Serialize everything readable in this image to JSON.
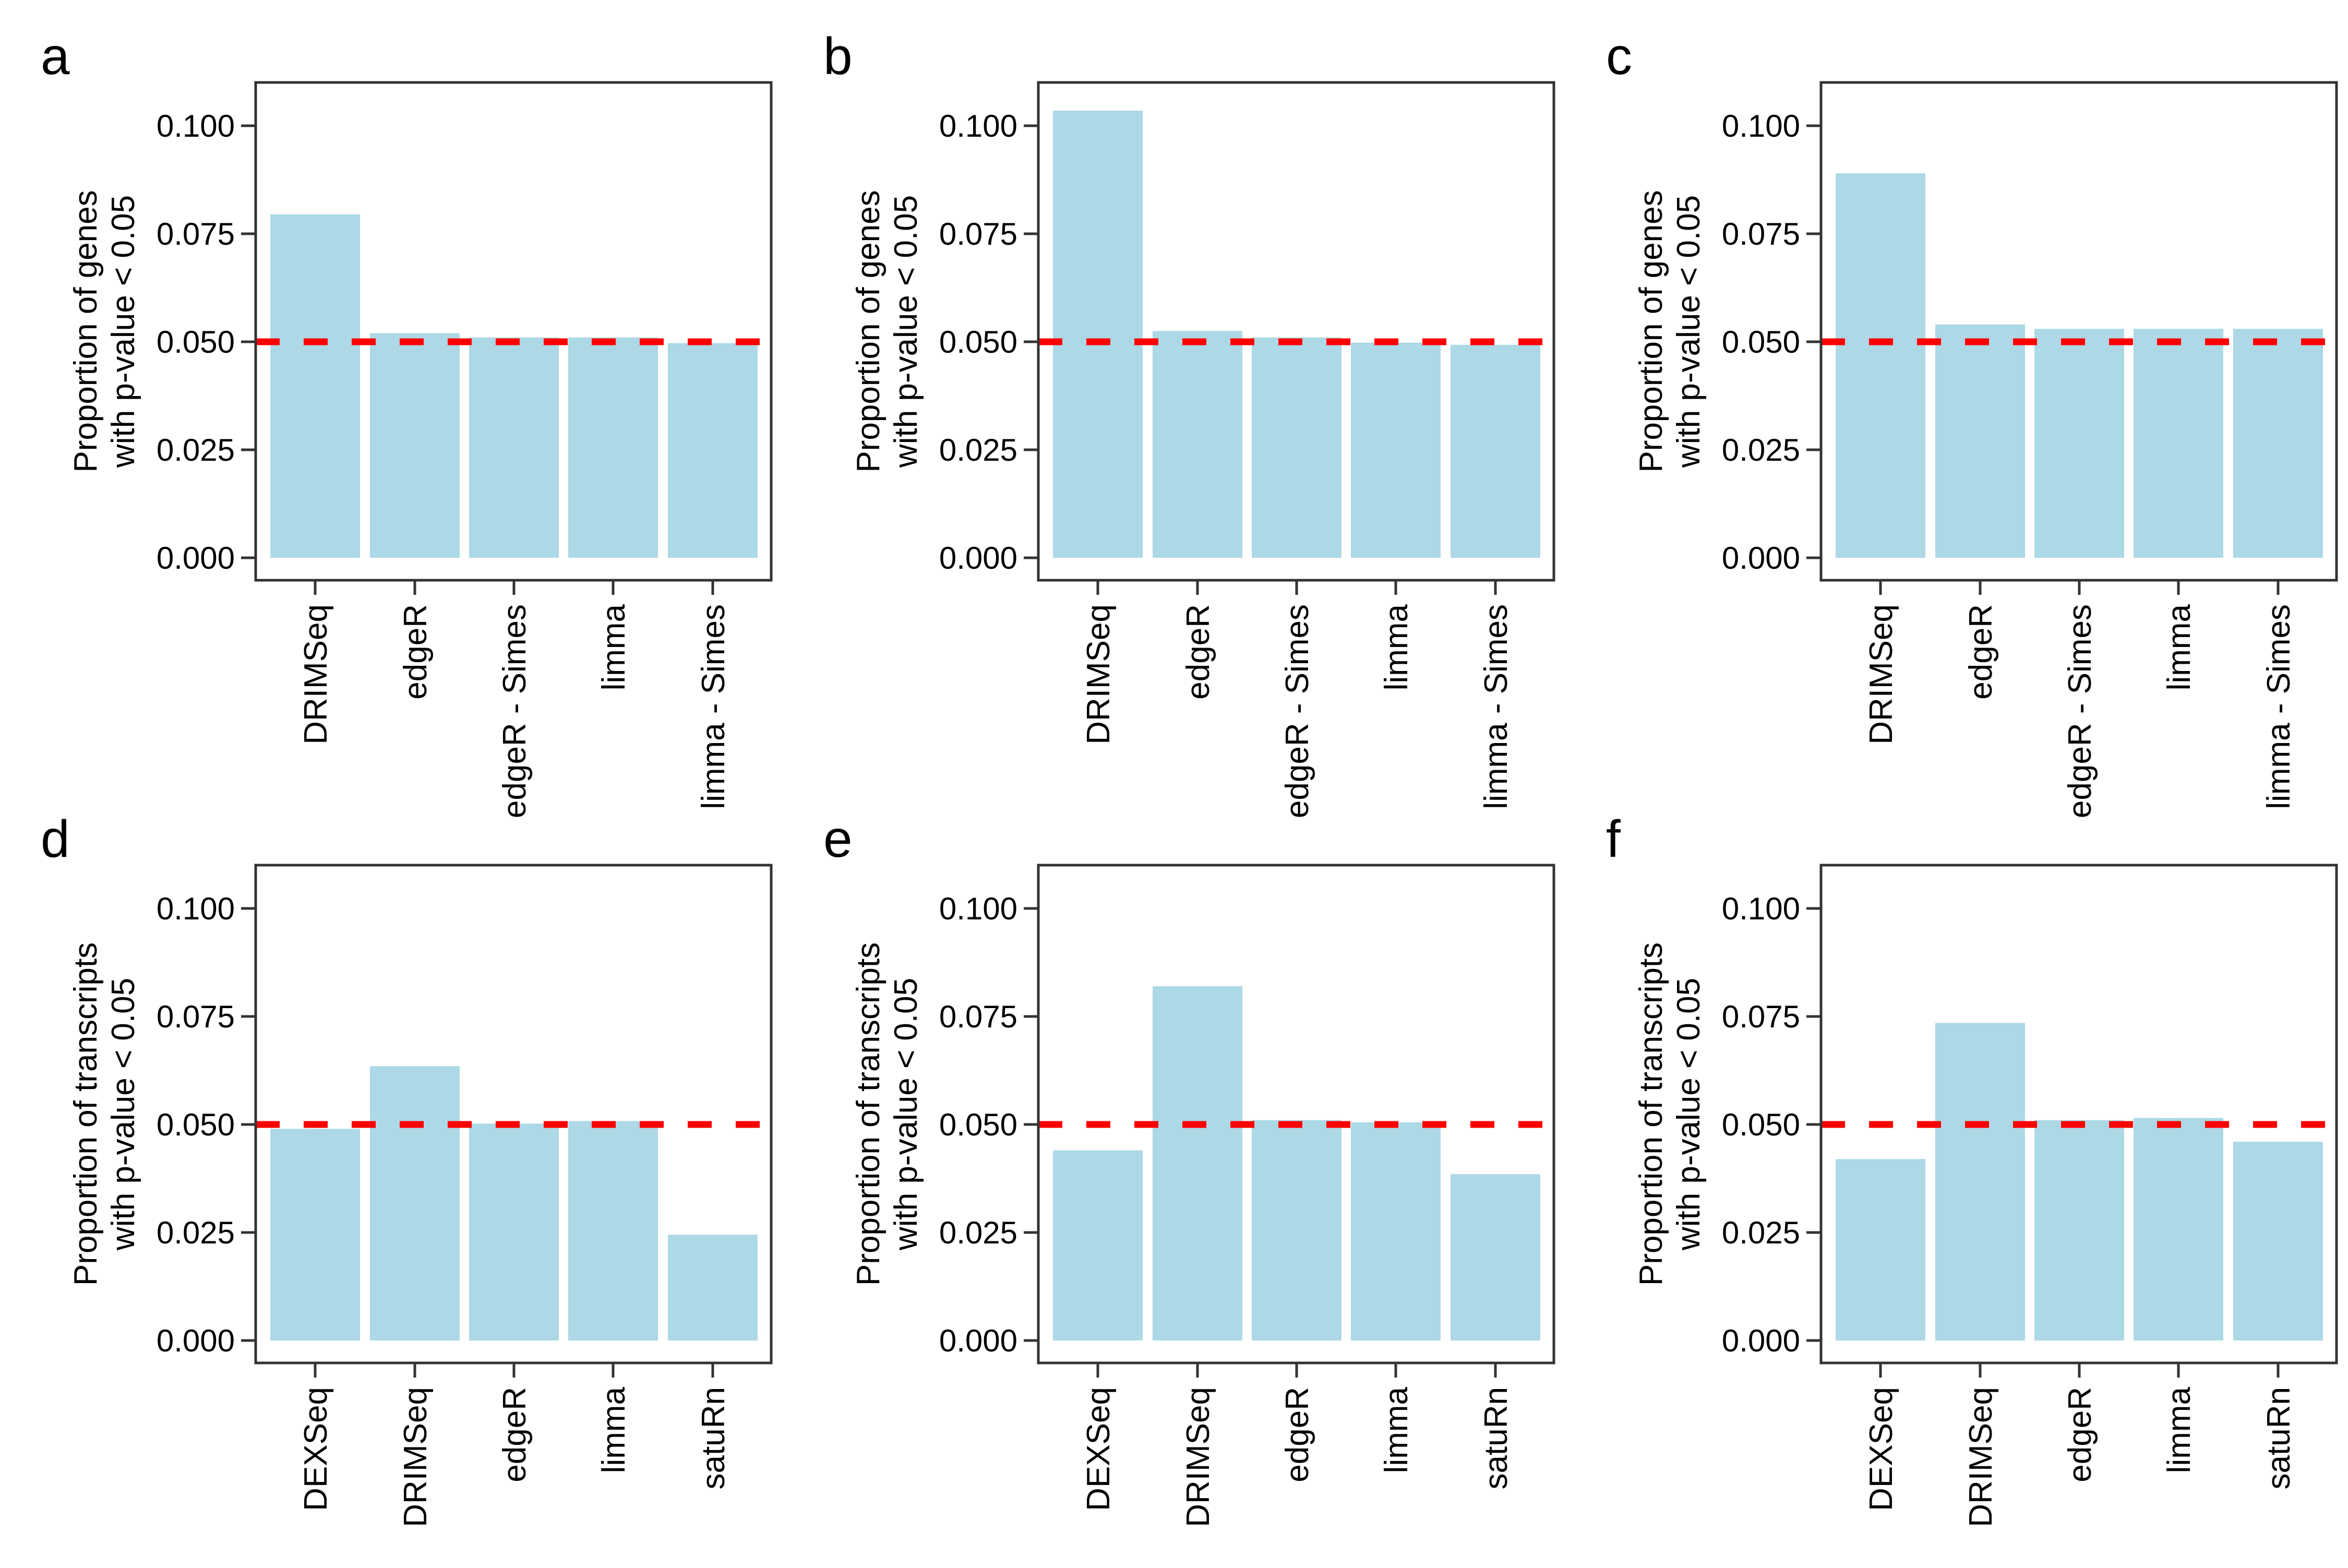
{
  "figure": {
    "background": "#FFFFFF",
    "bar_color": "#ADD8E6",
    "ref_line_color": "#FF0000",
    "axis_color": "#333333",
    "text_color": "#000000",
    "y_tick_values": [
      0.0,
      0.025,
      0.05,
      0.075,
      0.1
    ],
    "y_tick_labels": [
      "0.000",
      "0.025",
      "0.050",
      "0.075",
      "0.100"
    ]
  },
  "chart_data": [
    {
      "panel_label": "a",
      "type": "bar",
      "ylabel_line1": "Proportion of genes",
      "ylabel_line2": "with p-value < 0.05",
      "categories": [
        "DRIMSeq",
        "edgeR",
        "edgeR - Simes",
        "limma",
        "limma - Simes"
      ],
      "values": [
        0.0795,
        0.052,
        0.051,
        0.051,
        0.0497
      ],
      "ref_line": 0.05,
      "ylim": [
        0,
        0.11
      ],
      "grid": "off",
      "legend": "none"
    },
    {
      "panel_label": "b",
      "type": "bar",
      "ylabel_line1": "Proportion of genes",
      "ylabel_line2": "with p-value < 0.05",
      "categories": [
        "DRIMSeq",
        "edgeR",
        "edgeR - Simes",
        "limma",
        "limma - Simes"
      ],
      "values": [
        0.1035,
        0.0525,
        0.051,
        0.0498,
        0.0493
      ],
      "ref_line": 0.05,
      "ylim": [
        0,
        0.11
      ],
      "grid": "off",
      "legend": "none"
    },
    {
      "panel_label": "c",
      "type": "bar",
      "ylabel_line1": "Proportion of genes",
      "ylabel_line2": "with p-value < 0.05",
      "categories": [
        "DRIMSeq",
        "edgeR",
        "edgeR - Simes",
        "limma",
        "limma - Simes"
      ],
      "values": [
        0.089,
        0.054,
        0.053,
        0.053,
        0.053
      ],
      "ref_line": 0.05,
      "ylim": [
        0,
        0.11
      ],
      "grid": "off",
      "legend": "none"
    },
    {
      "panel_label": "d",
      "type": "bar",
      "ylabel_line1": "Proportion of transcripts",
      "ylabel_line2": "with p-value < 0.05",
      "categories": [
        "DEXSeq",
        "DRIMSeq",
        "edgeR",
        "limma",
        "satuRn"
      ],
      "values": [
        0.049,
        0.0635,
        0.0502,
        0.0508,
        0.0245
      ],
      "ref_line": 0.05,
      "ylim": [
        0,
        0.11
      ],
      "grid": "off",
      "legend": "none"
    },
    {
      "panel_label": "e",
      "type": "bar",
      "ylabel_line1": "Proportion of transcripts",
      "ylabel_line2": "with p-value < 0.05",
      "categories": [
        "DEXSeq",
        "DRIMSeq",
        "edgeR",
        "limma",
        "satuRn"
      ],
      "values": [
        0.044,
        0.082,
        0.051,
        0.0505,
        0.0385
      ],
      "ref_line": 0.05,
      "ylim": [
        0,
        0.11
      ],
      "grid": "off",
      "legend": "none"
    },
    {
      "panel_label": "f",
      "type": "bar",
      "ylabel_line1": "Proportion of transcripts",
      "ylabel_line2": "with p-value < 0.05",
      "categories": [
        "DEXSeq",
        "DRIMSeq",
        "edgeR",
        "limma",
        "satuRn"
      ],
      "values": [
        0.042,
        0.0735,
        0.051,
        0.0515,
        0.046
      ],
      "ref_line": 0.05,
      "ylim": [
        0,
        0.11
      ],
      "grid": "off",
      "legend": "none"
    }
  ]
}
